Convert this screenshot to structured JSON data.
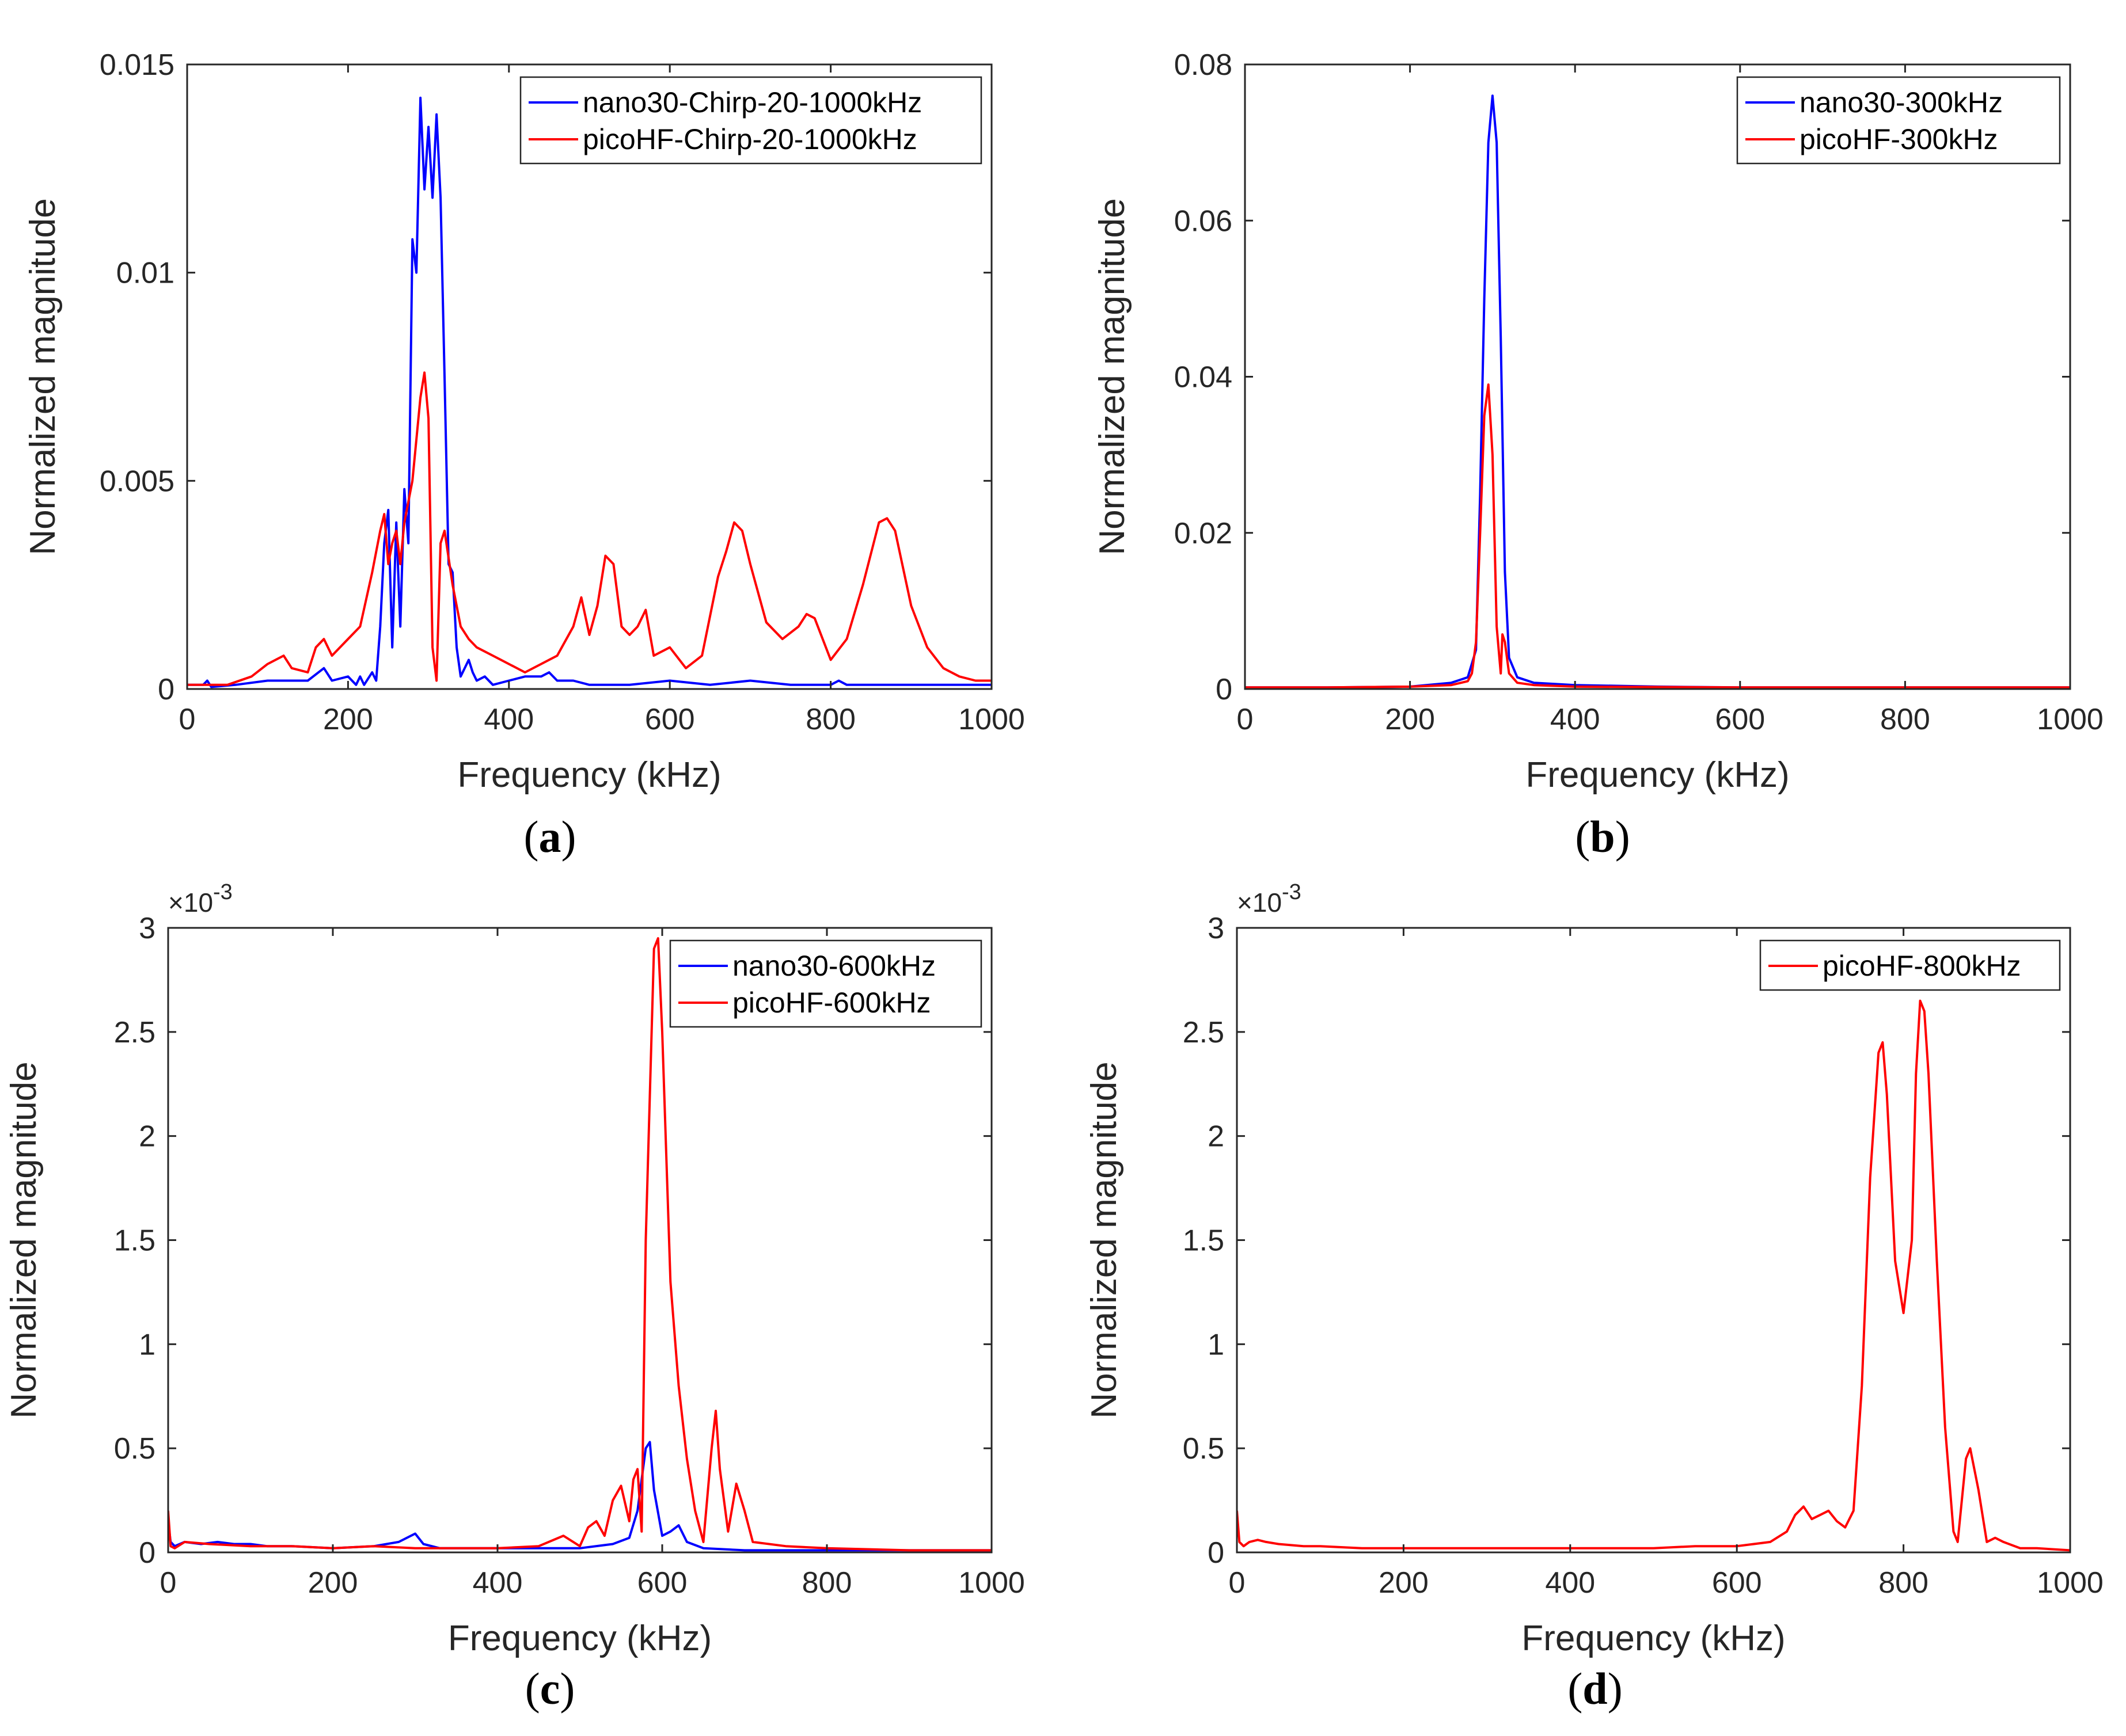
{
  "colors": {
    "nano30": "#0000ff",
    "picoHF": "#ff0000",
    "axis": "#262626"
  },
  "chart_data": [
    {
      "type": "line",
      "panel_letter": "a",
      "xlabel": "Frequency (kHz)",
      "ylabel": "Normalized magnitude",
      "xlim": [
        0,
        1000
      ],
      "ylim": [
        0,
        0.015
      ],
      "xticks": [
        0,
        200,
        400,
        600,
        800,
        1000
      ],
      "xtick_labels": [
        "0",
        "200",
        "400",
        "600",
        "800",
        "1000"
      ],
      "yticks": [
        0,
        0.005,
        0.01,
        0.015
      ],
      "ytick_labels": [
        "0",
        "0.005",
        "0.01",
        "0.015"
      ],
      "exponent_label": null,
      "legend_position": "top-right",
      "series": [
        {
          "name": "nano30-Chirp-20-1000kHz",
          "color": "#0000ff",
          "x": [
            0,
            20,
            25,
            30,
            60,
            100,
            150,
            170,
            180,
            200,
            210,
            215,
            220,
            230,
            235,
            240,
            245,
            250,
            255,
            260,
            265,
            270,
            275,
            280,
            285,
            290,
            295,
            300,
            305,
            310,
            315,
            320,
            325,
            330,
            335,
            340,
            350,
            355,
            360,
            370,
            380,
            400,
            420,
            440,
            450,
            460,
            480,
            500,
            550,
            600,
            650,
            700,
            750,
            800,
            810,
            820,
            850,
            900,
            950,
            1000
          ],
          "y": [
            0.0001,
            0.0001,
            0.0002,
            5e-05,
            0.0001,
            0.0002,
            0.0002,
            0.0005,
            0.0002,
            0.0003,
            0.0001,
            0.0003,
            0.0001,
            0.0004,
            0.0002,
            0.0015,
            0.0035,
            0.0043,
            0.001,
            0.004,
            0.0015,
            0.0048,
            0.0035,
            0.0108,
            0.01,
            0.0142,
            0.012,
            0.0135,
            0.0118,
            0.0138,
            0.0118,
            0.0075,
            0.003,
            0.0028,
            0.001,
            0.0003,
            0.0007,
            0.0004,
            0.0002,
            0.0003,
            0.0001,
            0.0002,
            0.0003,
            0.0003,
            0.0004,
            0.0002,
            0.0002,
            0.0001,
            0.0001,
            0.0002,
            0.0001,
            0.0002,
            0.0001,
            0.0001,
            0.0002,
            0.0001,
            0.0001,
            0.0001,
            0.0001,
            0.0001
          ]
        },
        {
          "name": "picoHF-Chirp-20-1000kHz",
          "color": "#ff0000",
          "x": [
            0,
            50,
            80,
            100,
            120,
            130,
            150,
            160,
            170,
            180,
            200,
            215,
            230,
            240,
            245,
            250,
            255,
            260,
            265,
            270,
            280,
            290,
            295,
            300,
            305,
            310,
            315,
            320,
            330,
            340,
            350,
            360,
            380,
            400,
            420,
            440,
            460,
            480,
            490,
            500,
            510,
            520,
            530,
            540,
            550,
            560,
            570,
            580,
            600,
            620,
            640,
            660,
            670,
            680,
            690,
            700,
            720,
            740,
            760,
            770,
            780,
            800,
            820,
            840,
            860,
            870,
            880,
            900,
            920,
            940,
            960,
            980,
            1000
          ],
          "y": [
            0.0001,
            0.0001,
            0.0003,
            0.0006,
            0.0008,
            0.0005,
            0.0004,
            0.001,
            0.0012,
            0.0008,
            0.0012,
            0.0015,
            0.0028,
            0.0038,
            0.0042,
            0.003,
            0.0035,
            0.0038,
            0.003,
            0.004,
            0.005,
            0.007,
            0.0076,
            0.0065,
            0.001,
            0.0002,
            0.0035,
            0.0038,
            0.0025,
            0.0015,
            0.0012,
            0.001,
            0.0008,
            0.0006,
            0.0004,
            0.0006,
            0.0008,
            0.0015,
            0.0022,
            0.0013,
            0.002,
            0.0032,
            0.003,
            0.0015,
            0.0013,
            0.0015,
            0.0019,
            0.0008,
            0.001,
            0.0005,
            0.0008,
            0.0027,
            0.0033,
            0.004,
            0.0038,
            0.003,
            0.0016,
            0.0012,
            0.0015,
            0.0018,
            0.0017,
            0.0007,
            0.0012,
            0.0025,
            0.004,
            0.0041,
            0.0038,
            0.002,
            0.001,
            0.0005,
            0.0003,
            0.0002,
            0.0002
          ]
        }
      ]
    },
    {
      "type": "line",
      "panel_letter": "b",
      "xlabel": "Frequency (kHz)",
      "ylabel": "Normalized magnitude",
      "xlim": [
        0,
        1000
      ],
      "ylim": [
        0,
        0.08
      ],
      "xticks": [
        0,
        200,
        400,
        600,
        800,
        1000
      ],
      "xtick_labels": [
        "0",
        "200",
        "400",
        "600",
        "800",
        "1000"
      ],
      "yticks": [
        0,
        0.02,
        0.04,
        0.06,
        0.08
      ],
      "ytick_labels": [
        "0",
        "0.02",
        "0.04",
        "0.06",
        "0.08"
      ],
      "exponent_label": null,
      "legend_position": "top-right",
      "series": [
        {
          "name": "nano30-300kHz",
          "color": "#0000ff",
          "x": [
            0,
            100,
            200,
            250,
            270,
            280,
            285,
            290,
            295,
            300,
            305,
            310,
            315,
            320,
            330,
            350,
            400,
            500,
            600,
            800,
            1000
          ],
          "y": [
            0.0002,
            0.0002,
            0.0003,
            0.0008,
            0.0015,
            0.005,
            0.025,
            0.05,
            0.07,
            0.076,
            0.07,
            0.045,
            0.015,
            0.004,
            0.0015,
            0.0008,
            0.0005,
            0.0003,
            0.0002,
            0.0002,
            0.0002
          ]
        },
        {
          "name": "picoHF-300kHz",
          "color": "#ff0000",
          "x": [
            0,
            100,
            200,
            250,
            270,
            275,
            280,
            285,
            290,
            295,
            300,
            305,
            310,
            312,
            315,
            320,
            330,
            350,
            400,
            600,
            800,
            1000
          ],
          "y": [
            0.0002,
            0.0002,
            0.0003,
            0.0005,
            0.001,
            0.002,
            0.006,
            0.02,
            0.035,
            0.039,
            0.03,
            0.008,
            0.002,
            0.007,
            0.006,
            0.002,
            0.0008,
            0.0005,
            0.0003,
            0.0002,
            0.0002,
            0.0002
          ]
        }
      ]
    },
    {
      "type": "line",
      "panel_letter": "c",
      "xlabel": "Frequency (kHz)",
      "ylabel": "Normalized magnitude",
      "xlim": [
        0,
        1000
      ],
      "ylim": [
        0,
        3
      ],
      "xticks": [
        0,
        200,
        400,
        600,
        800,
        1000
      ],
      "xtick_labels": [
        "0",
        "200",
        "400",
        "600",
        "800",
        "1000"
      ],
      "yticks": [
        0,
        0.5,
        1,
        1.5,
        2,
        2.5,
        3
      ],
      "ytick_labels": [
        "0",
        "0.5",
        "1",
        "1.5",
        "2",
        "2.5",
        "3"
      ],
      "exponent_label": "×10-3",
      "legend_position": "top-right",
      "series": [
        {
          "name": "nano30-600kHz",
          "color": "#0000ff",
          "x": [
            0,
            3,
            8,
            20,
            40,
            60,
            80,
            100,
            120,
            150,
            200,
            250,
            280,
            300,
            310,
            330,
            400,
            450,
            500,
            540,
            560,
            570,
            580,
            585,
            590,
            600,
            610,
            620,
            630,
            650,
            700,
            800,
            1000
          ],
          "y": [
            0.15,
            0.05,
            0.03,
            0.05,
            0.04,
            0.05,
            0.04,
            0.04,
            0.03,
            0.03,
            0.02,
            0.03,
            0.05,
            0.09,
            0.04,
            0.02,
            0.02,
            0.02,
            0.02,
            0.04,
            0.07,
            0.2,
            0.5,
            0.53,
            0.3,
            0.08,
            0.1,
            0.13,
            0.05,
            0.02,
            0.01,
            0.01,
            0.01
          ]
        },
        {
          "name": "picoHF-600kHz",
          "color": "#ff0000",
          "x": [
            0,
            3,
            8,
            20,
            50,
            100,
            150,
            200,
            250,
            300,
            350,
            400,
            450,
            480,
            500,
            510,
            520,
            530,
            540,
            550,
            560,
            565,
            570,
            575,
            580,
            590,
            595,
            600,
            610,
            620,
            630,
            640,
            650,
            660,
            665,
            670,
            680,
            690,
            700,
            710,
            750,
            800,
            900,
            1000
          ],
          "y": [
            0.2,
            0.03,
            0.02,
            0.05,
            0.04,
            0.03,
            0.03,
            0.02,
            0.03,
            0.02,
            0.02,
            0.02,
            0.03,
            0.08,
            0.03,
            0.12,
            0.15,
            0.08,
            0.25,
            0.32,
            0.15,
            0.35,
            0.4,
            0.1,
            1.5,
            2.9,
            2.95,
            2.5,
            1.3,
            0.8,
            0.45,
            0.2,
            0.05,
            0.5,
            0.68,
            0.4,
            0.1,
            0.33,
            0.2,
            0.05,
            0.03,
            0.02,
            0.01,
            0.01
          ]
        }
      ]
    },
    {
      "type": "line",
      "panel_letter": "d",
      "xlabel": "Frequency (kHz)",
      "ylabel": "Normalized magnitude",
      "xlim": [
        0,
        1000
      ],
      "ylim": [
        0,
        3
      ],
      "xticks": [
        0,
        200,
        400,
        600,
        800,
        1000
      ],
      "xtick_labels": [
        "0",
        "200",
        "400",
        "600",
        "800",
        "1000"
      ],
      "yticks": [
        0,
        0.5,
        1,
        1.5,
        2,
        2.5,
        3
      ],
      "ytick_labels": [
        "0",
        "0.5",
        "1",
        "1.5",
        "2",
        "2.5",
        "3"
      ],
      "exponent_label": "×10-3",
      "legend_position": "top-right",
      "series": [
        {
          "name": "picoHF-800kHz",
          "color": "#ff0000",
          "x": [
            0,
            3,
            8,
            15,
            25,
            35,
            50,
            80,
            100,
            150,
            200,
            300,
            400,
            500,
            550,
            600,
            640,
            660,
            670,
            680,
            690,
            700,
            710,
            720,
            730,
            740,
            750,
            760,
            770,
            775,
            780,
            790,
            800,
            810,
            815,
            820,
            825,
            830,
            840,
            850,
            860,
            865,
            870,
            875,
            880,
            890,
            900,
            910,
            920,
            940,
            960,
            1000
          ],
          "y": [
            0.2,
            0.05,
            0.03,
            0.05,
            0.06,
            0.05,
            0.04,
            0.03,
            0.03,
            0.02,
            0.02,
            0.02,
            0.02,
            0.02,
            0.03,
            0.03,
            0.05,
            0.1,
            0.18,
            0.22,
            0.16,
            0.18,
            0.2,
            0.15,
            0.12,
            0.2,
            0.8,
            1.8,
            2.4,
            2.45,
            2.2,
            1.4,
            1.15,
            1.5,
            2.3,
            2.65,
            2.6,
            2.3,
            1.4,
            0.6,
            0.1,
            0.05,
            0.25,
            0.45,
            0.5,
            0.3,
            0.05,
            0.07,
            0.05,
            0.02,
            0.02,
            0.01
          ]
        }
      ]
    }
  ]
}
